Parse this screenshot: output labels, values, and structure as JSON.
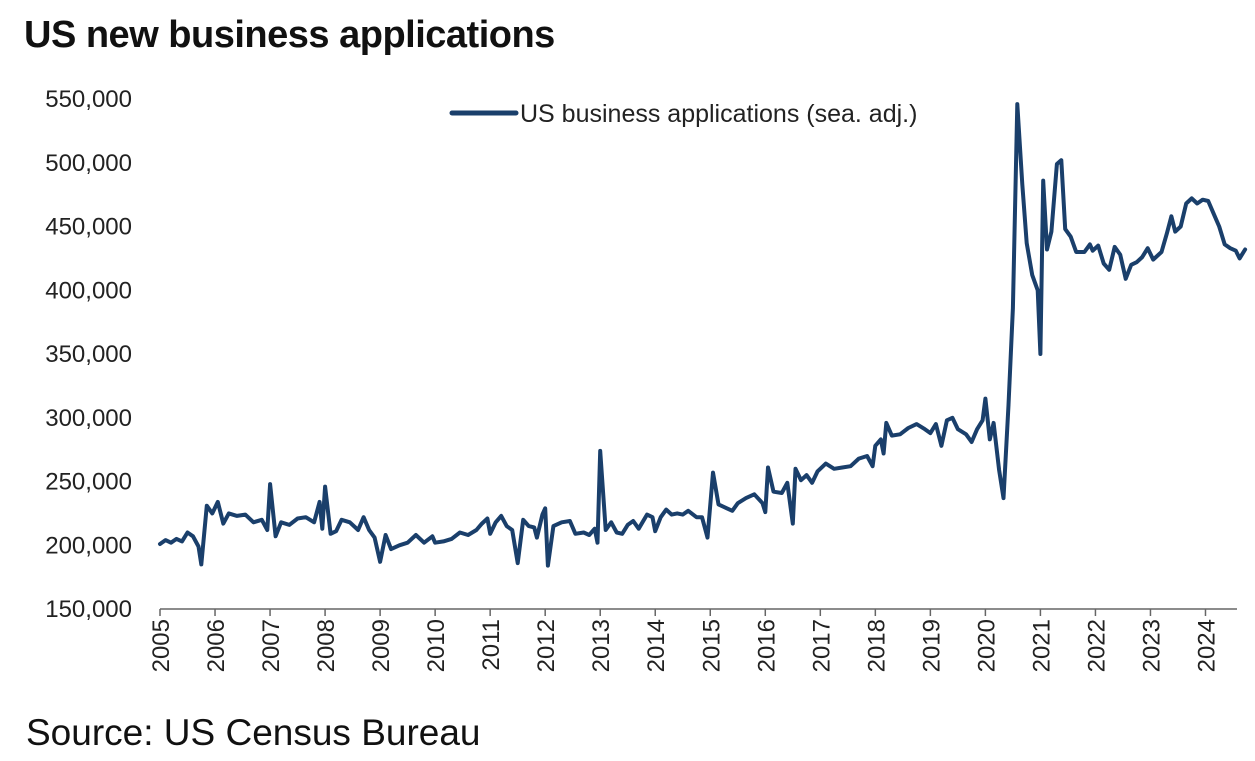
{
  "title": "US new business applications",
  "source": "Source: US Census Bureau",
  "colors": {
    "series": "#1a3f6b",
    "axis": "#666666"
  },
  "chart_data": {
    "type": "line",
    "title": "US new business applications",
    "xlabel": "",
    "ylabel": "",
    "ylim": [
      150000,
      550000
    ],
    "yticks": [
      150000,
      200000,
      250000,
      300000,
      350000,
      400000,
      450000,
      500000,
      550000
    ],
    "ytick_labels": [
      "150,000",
      "200,000",
      "250,000",
      "300,000",
      "350,000",
      "400,000",
      "450,000",
      "500,000",
      "550,000"
    ],
    "xlim": [
      2005,
      2024.5
    ],
    "xticks": [
      2005,
      2006,
      2007,
      2008,
      2009,
      2010,
      2011,
      2012,
      2013,
      2014,
      2015,
      2016,
      2017,
      2018,
      2019,
      2020,
      2021,
      2022,
      2023,
      2024
    ],
    "xtick_labels": [
      "2005",
      "2006",
      "2007",
      "2008",
      "2009",
      "2010",
      "2011",
      "2012",
      "2013",
      "2014",
      "2015",
      "2016",
      "2017",
      "2018",
      "2019",
      "2020",
      "2021",
      "2022",
      "2023",
      "2024"
    ],
    "grid": false,
    "legend_position": "top-center",
    "series": [
      {
        "name": "US business applications (sea. adj.)",
        "color": "#1a3f6b",
        "points": [
          [
            2005.0,
            201000
          ],
          [
            2005.1,
            204000
          ],
          [
            2005.2,
            202000
          ],
          [
            2005.3,
            205000
          ],
          [
            2005.4,
            203000
          ],
          [
            2005.5,
            210000
          ],
          [
            2005.6,
            207000
          ],
          [
            2005.7,
            199000
          ],
          [
            2005.75,
            185000
          ],
          [
            2005.85,
            231000
          ],
          [
            2005.95,
            225000
          ],
          [
            2006.05,
            234000
          ],
          [
            2006.15,
            217000
          ],
          [
            2006.25,
            225000
          ],
          [
            2006.4,
            223000
          ],
          [
            2006.55,
            224000
          ],
          [
            2006.7,
            218000
          ],
          [
            2006.85,
            220000
          ],
          [
            2006.95,
            212000
          ],
          [
            2007.0,
            248000
          ],
          [
            2007.1,
            207000
          ],
          [
            2007.2,
            218000
          ],
          [
            2007.35,
            216000
          ],
          [
            2007.5,
            221000
          ],
          [
            2007.65,
            222000
          ],
          [
            2007.8,
            218000
          ],
          [
            2007.9,
            234000
          ],
          [
            2007.95,
            213000
          ],
          [
            2008.0,
            246000
          ],
          [
            2008.1,
            209000
          ],
          [
            2008.2,
            211000
          ],
          [
            2008.3,
            220000
          ],
          [
            2008.45,
            218000
          ],
          [
            2008.6,
            212000
          ],
          [
            2008.7,
            222000
          ],
          [
            2008.8,
            212000
          ],
          [
            2008.9,
            206000
          ],
          [
            2009.0,
            187000
          ],
          [
            2009.1,
            208000
          ],
          [
            2009.2,
            197000
          ],
          [
            2009.35,
            200000
          ],
          [
            2009.5,
            202000
          ],
          [
            2009.65,
            208000
          ],
          [
            2009.8,
            202000
          ],
          [
            2009.95,
            207000
          ],
          [
            2010.0,
            202000
          ],
          [
            2010.15,
            203000
          ],
          [
            2010.3,
            205000
          ],
          [
            2010.45,
            210000
          ],
          [
            2010.6,
            208000
          ],
          [
            2010.75,
            212000
          ],
          [
            2010.85,
            217000
          ],
          [
            2010.95,
            221000
          ],
          [
            2011.0,
            209000
          ],
          [
            2011.1,
            218000
          ],
          [
            2011.2,
            223000
          ],
          [
            2011.3,
            215000
          ],
          [
            2011.4,
            212000
          ],
          [
            2011.5,
            186000
          ],
          [
            2011.6,
            220000
          ],
          [
            2011.7,
            215000
          ],
          [
            2011.8,
            214000
          ],
          [
            2011.85,
            206000
          ],
          [
            2011.95,
            224000
          ],
          [
            2012.0,
            229000
          ],
          [
            2012.05,
            184000
          ],
          [
            2012.15,
            215000
          ],
          [
            2012.3,
            218000
          ],
          [
            2012.45,
            219000
          ],
          [
            2012.55,
            209000
          ],
          [
            2012.7,
            210000
          ],
          [
            2012.8,
            208000
          ],
          [
            2012.9,
            213000
          ],
          [
            2012.95,
            202000
          ],
          [
            2013.0,
            274000
          ],
          [
            2013.1,
            212000
          ],
          [
            2013.2,
            218000
          ],
          [
            2013.3,
            210000
          ],
          [
            2013.4,
            209000
          ],
          [
            2013.5,
            216000
          ],
          [
            2013.6,
            219000
          ],
          [
            2013.7,
            213000
          ],
          [
            2013.85,
            224000
          ],
          [
            2013.95,
            222000
          ],
          [
            2014.0,
            211000
          ],
          [
            2014.1,
            222000
          ],
          [
            2014.2,
            228000
          ],
          [
            2014.3,
            224000
          ],
          [
            2014.4,
            225000
          ],
          [
            2014.5,
            224000
          ],
          [
            2014.6,
            227000
          ],
          [
            2014.75,
            222000
          ],
          [
            2014.85,
            222000
          ],
          [
            2014.95,
            206000
          ],
          [
            2015.05,
            257000
          ],
          [
            2015.15,
            232000
          ],
          [
            2015.3,
            229000
          ],
          [
            2015.4,
            227000
          ],
          [
            2015.5,
            233000
          ],
          [
            2015.65,
            237000
          ],
          [
            2015.8,
            240000
          ],
          [
            2015.95,
            233000
          ],
          [
            2016.0,
            226000
          ],
          [
            2016.05,
            261000
          ],
          [
            2016.15,
            242000
          ],
          [
            2016.3,
            241000
          ],
          [
            2016.4,
            249000
          ],
          [
            2016.5,
            217000
          ],
          [
            2016.55,
            260000
          ],
          [
            2016.65,
            251000
          ],
          [
            2016.75,
            255000
          ],
          [
            2016.85,
            249000
          ],
          [
            2016.95,
            258000
          ],
          [
            2017.1,
            264000
          ],
          [
            2017.25,
            260000
          ],
          [
            2017.4,
            261000
          ],
          [
            2017.55,
            262000
          ],
          [
            2017.7,
            268000
          ],
          [
            2017.85,
            270000
          ],
          [
            2017.95,
            262000
          ],
          [
            2018.0,
            278000
          ],
          [
            2018.1,
            283000
          ],
          [
            2018.15,
            272000
          ],
          [
            2018.2,
            296000
          ],
          [
            2018.3,
            286000
          ],
          [
            2018.45,
            287000
          ],
          [
            2018.6,
            292000
          ],
          [
            2018.75,
            295000
          ],
          [
            2018.9,
            291000
          ],
          [
            2019.0,
            288000
          ],
          [
            2019.1,
            295000
          ],
          [
            2019.2,
            278000
          ],
          [
            2019.3,
            298000
          ],
          [
            2019.4,
            300000
          ],
          [
            2019.5,
            291000
          ],
          [
            2019.65,
            287000
          ],
          [
            2019.75,
            281000
          ],
          [
            2019.85,
            291000
          ],
          [
            2019.95,
            298000
          ],
          [
            2020.0,
            315000
          ],
          [
            2020.08,
            283000
          ],
          [
            2020.15,
            296000
          ],
          [
            2020.25,
            259000
          ],
          [
            2020.33,
            237000
          ],
          [
            2020.42,
            310000
          ],
          [
            2020.5,
            386000
          ],
          [
            2020.58,
            546000
          ],
          [
            2020.67,
            483000
          ],
          [
            2020.75,
            437000
          ],
          [
            2020.85,
            412000
          ],
          [
            2020.95,
            400000
          ],
          [
            2021.0,
            350000
          ],
          [
            2021.05,
            486000
          ],
          [
            2021.12,
            432000
          ],
          [
            2021.2,
            446000
          ],
          [
            2021.3,
            499000
          ],
          [
            2021.38,
            502000
          ],
          [
            2021.45,
            448000
          ],
          [
            2021.55,
            442000
          ],
          [
            2021.65,
            430000
          ],
          [
            2021.8,
            430000
          ],
          [
            2021.9,
            436000
          ],
          [
            2021.95,
            431000
          ],
          [
            2022.05,
            435000
          ],
          [
            2022.15,
            421000
          ],
          [
            2022.25,
            416000
          ],
          [
            2022.35,
            434000
          ],
          [
            2022.45,
            428000
          ],
          [
            2022.55,
            409000
          ],
          [
            2022.65,
            420000
          ],
          [
            2022.75,
            422000
          ],
          [
            2022.85,
            426000
          ],
          [
            2022.95,
            433000
          ],
          [
            2023.05,
            424000
          ],
          [
            2023.2,
            430000
          ],
          [
            2023.3,
            445000
          ],
          [
            2023.38,
            458000
          ],
          [
            2023.45,
            446000
          ],
          [
            2023.55,
            450000
          ],
          [
            2023.65,
            468000
          ],
          [
            2023.75,
            472000
          ],
          [
            2023.85,
            468000
          ],
          [
            2023.95,
            471000
          ],
          [
            2024.05,
            470000
          ],
          [
            2024.15,
            460000
          ],
          [
            2024.25,
            450000
          ],
          [
            2024.35,
            436000
          ],
          [
            2024.45,
            433000
          ],
          [
            2024.55,
            431000
          ],
          [
            2024.62,
            425000
          ],
          [
            2024.72,
            432000
          ]
        ]
      }
    ]
  }
}
